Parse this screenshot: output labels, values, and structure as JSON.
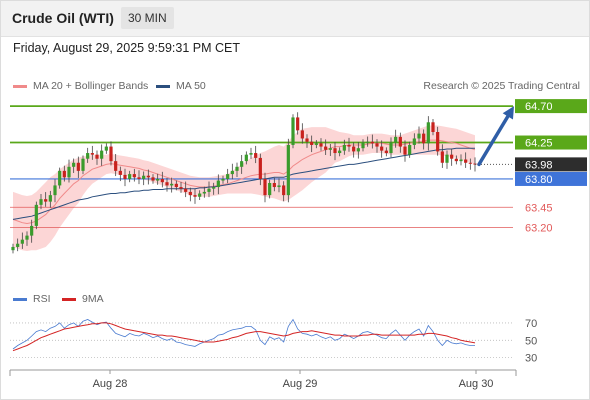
{
  "header": {
    "title": "Crude Oil (WTI)",
    "timeframe": "30 MIN"
  },
  "datetime": "Friday, August 29, 2025 9:59:31 PM CET",
  "legend": {
    "ma20_bb": "MA 20 + Bollinger Bands",
    "ma50": "MA 50",
    "credit": "Research © 2025 Trading Central",
    "rsi": "RSI",
    "ma9": "9MA"
  },
  "colors": {
    "up": "#3a9b2c",
    "down": "#c8211d",
    "ma20": "#f08a8a",
    "bands": "#fcd6d6",
    "ma50": "#2b4f7e",
    "resistance": "#5aa81a",
    "pivot": "#3f74d9",
    "support": "#e25a5a",
    "arrow": "#2f5ea7",
    "rsi": "#4a7bd0",
    "rsi_ma": "#d42424"
  },
  "chart_data": [
    {
      "type": "candlestick",
      "title": "Crude Oil (WTI)",
      "x_ticks": [
        "Aug 28",
        "Aug 29",
        "Aug 30"
      ],
      "ylim": [
        62.7,
        64.8
      ],
      "current_price": 63.98,
      "levels": [
        {
          "value": 64.7,
          "label": "64.70",
          "kind": "resistance"
        },
        {
          "value": 64.25,
          "label": "64.25",
          "kind": "resistance"
        },
        {
          "value": 63.8,
          "label": "63.80",
          "kind": "pivot"
        },
        {
          "value": 63.45,
          "label": "63.45",
          "kind": "support"
        },
        {
          "value": 63.2,
          "label": "63.20",
          "kind": "support"
        }
      ],
      "current_label": "63.98",
      "close": [
        62.96,
        63.0,
        63.05,
        63.1,
        63.22,
        63.48,
        63.55,
        63.52,
        63.6,
        63.72,
        63.9,
        63.82,
        63.95,
        64.0,
        63.9,
        64.05,
        64.12,
        64.1,
        64.05,
        64.15,
        64.2,
        64.02,
        63.9,
        63.85,
        63.8,
        63.86,
        63.82,
        63.8,
        63.84,
        63.82,
        63.78,
        63.8,
        63.76,
        63.72,
        63.74,
        63.7,
        63.68,
        63.64,
        63.6,
        63.58,
        63.62,
        63.64,
        63.68,
        63.7,
        63.78,
        63.8,
        63.86,
        63.9,
        63.95,
        64.02,
        64.1,
        64.12,
        64.06,
        63.8,
        63.6,
        63.75,
        63.7,
        63.72,
        63.6,
        64.22,
        64.56,
        64.4,
        64.3,
        64.26,
        64.22,
        64.24,
        64.2,
        64.16,
        64.18,
        64.12,
        64.15,
        64.22,
        64.2,
        64.14,
        64.18,
        64.25,
        64.26,
        64.24,
        64.2,
        64.15,
        64.12,
        64.25,
        64.32,
        64.2,
        64.1,
        64.22,
        64.3,
        64.36,
        64.24,
        64.5,
        64.38,
        64.14,
        64.0,
        64.1,
        64.05,
        64.02,
        64.04,
        64.0,
        63.99,
        63.98
      ],
      "ma20": [
        63.3,
        63.28,
        63.26,
        63.25,
        63.26,
        63.28,
        63.32,
        63.36,
        63.42,
        63.48,
        63.56,
        63.62,
        63.68,
        63.74,
        63.78,
        63.84,
        63.88,
        63.92,
        63.94,
        63.96,
        63.98,
        63.99,
        63.98,
        63.97,
        63.96,
        63.95,
        63.94,
        63.93,
        63.91,
        63.9,
        63.88,
        63.86,
        63.84,
        63.82,
        63.8,
        63.78,
        63.76,
        63.74,
        63.72,
        63.71,
        63.7,
        63.7,
        63.7,
        63.71,
        63.72,
        63.73,
        63.74,
        63.76,
        63.78,
        63.8,
        63.82,
        63.84,
        63.85,
        63.86,
        63.86,
        63.87,
        63.88,
        63.88,
        63.86,
        63.9,
        63.96,
        64.0,
        64.04,
        64.07,
        64.1,
        64.12,
        64.14,
        64.16,
        64.18,
        64.2,
        64.2,
        64.21,
        64.22,
        64.22,
        64.22,
        64.22,
        64.23,
        64.24,
        64.24,
        64.24,
        64.23,
        64.22,
        64.22,
        64.22,
        64.23,
        64.24,
        64.25,
        64.26,
        64.27,
        64.28,
        64.28,
        64.28,
        64.27,
        64.26,
        64.25,
        64.24,
        64.22,
        64.2,
        64.18,
        64.16
      ],
      "band_width": [
        0.34,
        0.34,
        0.34,
        0.34,
        0.34,
        0.36,
        0.38,
        0.4,
        0.4,
        0.38,
        0.36,
        0.34,
        0.32,
        0.3,
        0.28,
        0.24,
        0.2,
        0.18,
        0.16,
        0.14,
        0.12,
        0.12,
        0.12,
        0.12,
        0.12,
        0.12,
        0.12,
        0.12,
        0.12,
        0.12,
        0.12,
        0.12,
        0.12,
        0.12,
        0.12,
        0.12,
        0.12,
        0.12,
        0.12,
        0.12,
        0.12,
        0.12,
        0.12,
        0.12,
        0.12,
        0.12,
        0.12,
        0.14,
        0.16,
        0.18,
        0.2,
        0.22,
        0.24,
        0.26,
        0.28,
        0.3,
        0.32,
        0.34,
        0.34,
        0.36,
        0.38,
        0.38,
        0.38,
        0.36,
        0.34,
        0.32,
        0.3,
        0.28,
        0.24,
        0.2,
        0.18,
        0.16,
        0.14,
        0.12,
        0.12,
        0.12,
        0.12,
        0.12,
        0.12,
        0.12,
        0.12,
        0.12,
        0.12,
        0.12,
        0.13,
        0.14,
        0.15,
        0.16,
        0.17,
        0.18,
        0.18,
        0.18,
        0.18,
        0.18,
        0.18,
        0.18,
        0.18,
        0.18,
        0.18,
        0.18
      ],
      "ma50": [
        63.3,
        63.31,
        63.32,
        63.33,
        63.34,
        63.36,
        63.38,
        63.4,
        63.42,
        63.44,
        63.46,
        63.48,
        63.5,
        63.52,
        63.54,
        63.55,
        63.56,
        63.58,
        63.59,
        63.6,
        63.61,
        63.62,
        63.62,
        63.63,
        63.63,
        63.64,
        63.65,
        63.65,
        63.66,
        63.66,
        63.67,
        63.67,
        63.67,
        63.68,
        63.68,
        63.68,
        63.68,
        63.68,
        63.68,
        63.68,
        63.69,
        63.69,
        63.7,
        63.7,
        63.71,
        63.72,
        63.73,
        63.74,
        63.75,
        63.76,
        63.77,
        63.78,
        63.79,
        63.8,
        63.8,
        63.81,
        63.82,
        63.82,
        63.82,
        63.84,
        63.86,
        63.87,
        63.88,
        63.89,
        63.9,
        63.91,
        63.92,
        63.93,
        63.94,
        63.95,
        63.96,
        63.97,
        63.98,
        63.98,
        63.99,
        64.0,
        64.01,
        64.02,
        64.03,
        64.04,
        64.05,
        64.06,
        64.07,
        64.08,
        64.09,
        64.1,
        64.11,
        64.12,
        64.13,
        64.14,
        64.15,
        64.16,
        64.16,
        64.17,
        64.17,
        64.18,
        64.18,
        64.18,
        64.18,
        64.18
      ],
      "forecast_arrow": {
        "from": 63.98,
        "to": 64.7
      }
    },
    {
      "type": "line",
      "title": "RSI",
      "ylim": [
        25,
        78
      ],
      "y_ticks": [
        70,
        50,
        30
      ],
      "series": [
        {
          "name": "RSI",
          "values": [
            40,
            44,
            47,
            50,
            55,
            60,
            62,
            60,
            64,
            66,
            70,
            64,
            68,
            70,
            66,
            72,
            74,
            71,
            68,
            70,
            71,
            64,
            58,
            56,
            54,
            58,
            56,
            55,
            58,
            56,
            53,
            55,
            52,
            50,
            52,
            48,
            47,
            45,
            44,
            43,
            46,
            48,
            50,
            52,
            56,
            57,
            60,
            62,
            63,
            64,
            66,
            66,
            62,
            50,
            45,
            54,
            51,
            53,
            48,
            66,
            74,
            63,
            58,
            57,
            55,
            57,
            54,
            52,
            54,
            50,
            52,
            57,
            55,
            52,
            55,
            59,
            60,
            58,
            56,
            53,
            52,
            58,
            62,
            56,
            50,
            56,
            60,
            63,
            55,
            67,
            60,
            50,
            44,
            50,
            47,
            46,
            47,
            45,
            44,
            44
          ]
        },
        {
          "name": "9MA",
          "values": [
            38,
            40,
            42,
            44,
            47,
            50,
            53,
            55,
            57,
            59,
            61,
            63,
            64,
            65,
            66,
            67,
            68,
            69,
            69,
            70,
            70,
            69,
            67,
            65,
            63,
            62,
            61,
            60,
            59,
            58,
            57,
            56,
            56,
            55,
            55,
            54,
            53,
            52,
            51,
            50,
            49,
            48,
            48,
            48,
            49,
            50,
            51,
            53,
            54,
            56,
            58,
            59,
            60,
            60,
            59,
            58,
            57,
            56,
            55,
            56,
            58,
            59,
            60,
            60,
            61,
            60,
            59,
            58,
            57,
            56,
            56,
            55,
            55,
            55,
            55,
            56,
            56,
            57,
            57,
            56,
            56,
            56,
            56,
            56,
            56,
            56,
            56,
            57,
            57,
            58,
            58,
            57,
            56,
            55,
            53,
            52,
            50,
            49,
            48,
            47
          ]
        }
      ]
    }
  ]
}
